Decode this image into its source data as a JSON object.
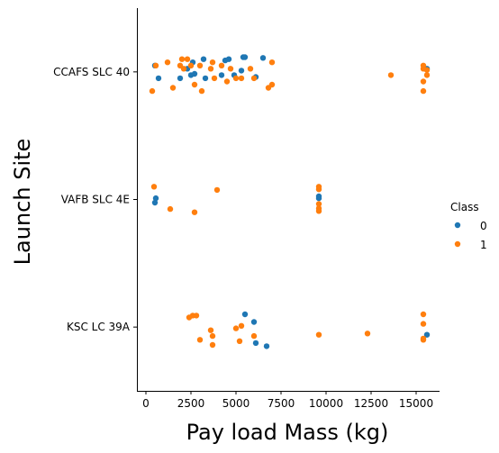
{
  "chart_data": {
    "type": "scatter",
    "title": "",
    "xlabel": "Pay load Mass (kg)",
    "ylabel": "Launch Site",
    "xlim": [
      -500,
      16300
    ],
    "x_ticks": [
      0,
      2500,
      5000,
      7500,
      10000,
      12500,
      15000
    ],
    "x_tick_labels": [
      "0",
      "2500",
      "5000",
      "7500",
      "10000",
      "12500",
      "15000"
    ],
    "categories": [
      "CCAFS SLC 40",
      "VAFB SLC 4E",
      "KSC LC 39A"
    ],
    "grid": false,
    "legend": {
      "title": "Class",
      "placement": "center-right",
      "entries": [
        {
          "label": "0",
          "color": "#1f77b4"
        },
        {
          "label": "1",
          "color": "#ff7f0e"
        }
      ]
    },
    "series": [
      {
        "class": "0",
        "color": "#1f77b4",
        "points": [
          {
            "site": "CCAFS SLC 40",
            "x": 500,
            "jitter": -0.1
          },
          {
            "site": "CCAFS SLC 40",
            "x": 700,
            "jitter": 0.1
          },
          {
            "site": "CCAFS SLC 40",
            "x": 1900,
            "jitter": 0.1
          },
          {
            "site": "CCAFS SLC 40",
            "x": 2300,
            "jitter": -0.05
          },
          {
            "site": "CCAFS SLC 40",
            "x": 2500,
            "jitter": 0.05
          },
          {
            "site": "CCAFS SLC 40",
            "x": 2600,
            "jitter": -0.15
          },
          {
            "site": "CCAFS SLC 40",
            "x": 2700,
            "jitter": 0.03
          },
          {
            "site": "CCAFS SLC 40",
            "x": 3200,
            "jitter": -0.2
          },
          {
            "site": "CCAFS SLC 40",
            "x": 3300,
            "jitter": 0.1
          },
          {
            "site": "CCAFS SLC 40",
            "x": 4200,
            "jitter": 0.05
          },
          {
            "site": "CCAFS SLC 40",
            "x": 4400,
            "jitter": -0.18
          },
          {
            "site": "CCAFS SLC 40",
            "x": 4600,
            "jitter": -0.2
          },
          {
            "site": "CCAFS SLC 40",
            "x": 4900,
            "jitter": 0.05
          },
          {
            "site": "CCAFS SLC 40",
            "x": 5300,
            "jitter": -0.02
          },
          {
            "site": "CCAFS SLC 40",
            "x": 5400,
            "jitter": -0.23
          },
          {
            "site": "CCAFS SLC 40",
            "x": 5500,
            "jitter": -0.23
          },
          {
            "site": "CCAFS SLC 40",
            "x": 6100,
            "jitter": 0.08
          },
          {
            "site": "CCAFS SLC 40",
            "x": 6500,
            "jitter": -0.22
          },
          {
            "site": "CCAFS SLC 40",
            "x": 15600,
            "jitter": -0.05
          },
          {
            "site": "VAFB SLC 4E",
            "x": 500,
            "jitter": 0.05
          },
          {
            "site": "VAFB SLC 4E",
            "x": 550,
            "jitter": -0.02
          },
          {
            "site": "VAFB SLC 4E",
            "x": 9600,
            "jitter": -0.05
          },
          {
            "site": "VAFB SLC 4E",
            "x": 9600,
            "jitter": -0.02
          },
          {
            "site": "KSC LC 39A",
            "x": 5500,
            "jitter": -0.2
          },
          {
            "site": "KSC LC 39A",
            "x": 6000,
            "jitter": -0.08
          },
          {
            "site": "KSC LC 39A",
            "x": 6100,
            "jitter": 0.25
          },
          {
            "site": "KSC LC 39A",
            "x": 6700,
            "jitter": 0.3
          },
          {
            "site": "KSC LC 39A",
            "x": 15600,
            "jitter": 0.12
          }
        ]
      },
      {
        "class": "1",
        "color": "#ff7f0e",
        "points": [
          {
            "site": "CCAFS SLC 40",
            "x": 350,
            "jitter": 0.3
          },
          {
            "site": "CCAFS SLC 40",
            "x": 550,
            "jitter": -0.1
          },
          {
            "site": "CCAFS SLC 40",
            "x": 1200,
            "jitter": -0.15
          },
          {
            "site": "CCAFS SLC 40",
            "x": 1500,
            "jitter": 0.25
          },
          {
            "site": "CCAFS SLC 40",
            "x": 1900,
            "jitter": -0.1
          },
          {
            "site": "CCAFS SLC 40",
            "x": 2000,
            "jitter": -0.2
          },
          {
            "site": "CCAFS SLC 40",
            "x": 2100,
            "jitter": -0.05
          },
          {
            "site": "CCAFS SLC 40",
            "x": 2300,
            "jitter": -0.2
          },
          {
            "site": "CCAFS SLC 40",
            "x": 2500,
            "jitter": -0.1
          },
          {
            "site": "CCAFS SLC 40",
            "x": 2700,
            "jitter": 0.2
          },
          {
            "site": "CCAFS SLC 40",
            "x": 3000,
            "jitter": -0.1
          },
          {
            "site": "CCAFS SLC 40",
            "x": 3100,
            "jitter": 0.3
          },
          {
            "site": "CCAFS SLC 40",
            "x": 3600,
            "jitter": -0.05
          },
          {
            "site": "CCAFS SLC 40",
            "x": 3700,
            "jitter": -0.15
          },
          {
            "site": "CCAFS SLC 40",
            "x": 3800,
            "jitter": 0.1
          },
          {
            "site": "CCAFS SLC 40",
            "x": 4200,
            "jitter": -0.1
          },
          {
            "site": "CCAFS SLC 40",
            "x": 4500,
            "jitter": 0.15
          },
          {
            "site": "CCAFS SLC 40",
            "x": 4700,
            "jitter": -0.05
          },
          {
            "site": "CCAFS SLC 40",
            "x": 5000,
            "jitter": 0.1
          },
          {
            "site": "CCAFS SLC 40",
            "x": 5300,
            "jitter": 0.1
          },
          {
            "site": "CCAFS SLC 40",
            "x": 5800,
            "jitter": -0.05
          },
          {
            "site": "CCAFS SLC 40",
            "x": 6000,
            "jitter": 0.1
          },
          {
            "site": "CCAFS SLC 40",
            "x": 6800,
            "jitter": 0.25
          },
          {
            "site": "CCAFS SLC 40",
            "x": 7000,
            "jitter": 0.2
          },
          {
            "site": "CCAFS SLC 40",
            "x": 7000,
            "jitter": -0.15
          },
          {
            "site": "CCAFS SLC 40",
            "x": 13600,
            "jitter": 0.05
          },
          {
            "site": "CCAFS SLC 40",
            "x": 15400,
            "jitter": 0.3
          },
          {
            "site": "CCAFS SLC 40",
            "x": 15400,
            "jitter": 0.15
          },
          {
            "site": "CCAFS SLC 40",
            "x": 15400,
            "jitter": -0.05
          },
          {
            "site": "CCAFS SLC 40",
            "x": 15400,
            "jitter": -0.1
          },
          {
            "site": "CCAFS SLC 40",
            "x": 15600,
            "jitter": 0.05
          },
          {
            "site": "CCAFS SLC 40",
            "x": 15600,
            "jitter": -0.03
          },
          {
            "site": "VAFB SLC 4E",
            "x": 450,
            "jitter": -0.2
          },
          {
            "site": "VAFB SLC 4E",
            "x": 1350,
            "jitter": 0.15
          },
          {
            "site": "VAFB SLC 4E",
            "x": 2700,
            "jitter": 0.2
          },
          {
            "site": "VAFB SLC 4E",
            "x": 3950,
            "jitter": -0.15
          },
          {
            "site": "VAFB SLC 4E",
            "x": 9600,
            "jitter": 0.18
          },
          {
            "site": "VAFB SLC 4E",
            "x": 9600,
            "jitter": 0.14
          },
          {
            "site": "VAFB SLC 4E",
            "x": 9600,
            "jitter": 0.07
          },
          {
            "site": "VAFB SLC 4E",
            "x": 9600,
            "jitter": -0.2
          },
          {
            "site": "VAFB SLC 4E",
            "x": 9600,
            "jitter": -0.16
          },
          {
            "site": "KSC LC 39A",
            "x": 2400,
            "jitter": -0.15
          },
          {
            "site": "KSC LC 39A",
            "x": 2600,
            "jitter": -0.18
          },
          {
            "site": "KSC LC 39A",
            "x": 2800,
            "jitter": -0.18
          },
          {
            "site": "KSC LC 39A",
            "x": 3000,
            "jitter": 0.2
          },
          {
            "site": "KSC LC 39A",
            "x": 3600,
            "jitter": 0.05
          },
          {
            "site": "KSC LC 39A",
            "x": 3700,
            "jitter": 0.28
          },
          {
            "site": "KSC LC 39A",
            "x": 3700,
            "jitter": 0.14
          },
          {
            "site": "KSC LC 39A",
            "x": 5000,
            "jitter": 0.02
          },
          {
            "site": "KSC LC 39A",
            "x": 5200,
            "jitter": 0.22
          },
          {
            "site": "KSC LC 39A",
            "x": 5300,
            "jitter": -0.02
          },
          {
            "site": "KSC LC 39A",
            "x": 6000,
            "jitter": 0.14
          },
          {
            "site": "KSC LC 39A",
            "x": 9600,
            "jitter": 0.12
          },
          {
            "site": "KSC LC 39A",
            "x": 12300,
            "jitter": 0.1
          },
          {
            "site": "KSC LC 39A",
            "x": 15400,
            "jitter": 0.2
          },
          {
            "site": "KSC LC 39A",
            "x": 15400,
            "jitter": 0.18
          },
          {
            "site": "KSC LC 39A",
            "x": 15400,
            "jitter": -0.05
          },
          {
            "site": "KSC LC 39A",
            "x": 15400,
            "jitter": -0.2
          }
        ]
      }
    ]
  }
}
